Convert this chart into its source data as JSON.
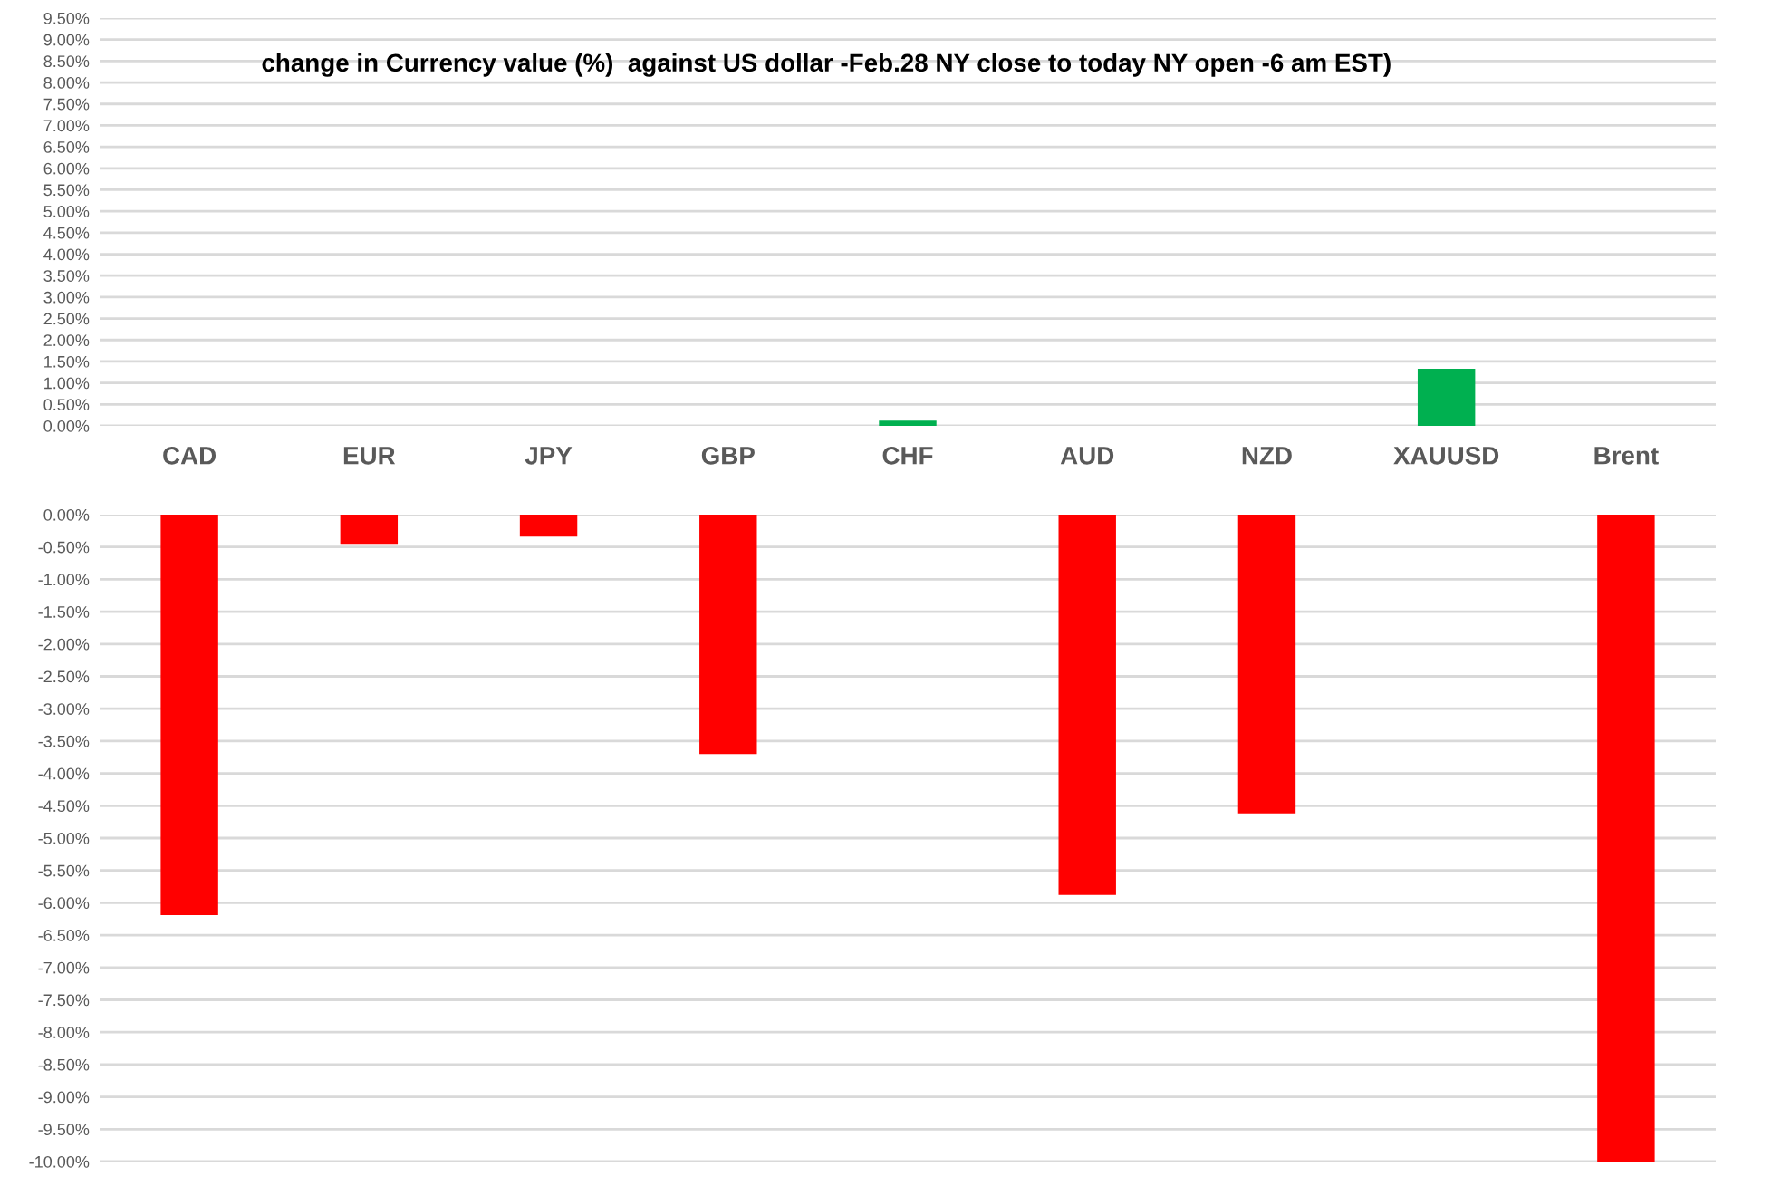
{
  "chart_data": [
    {
      "type": "bar",
      "title": "change in Currency value (%)  against US dollar -Feb.28 NY close to today NY open -6 am EST)",
      "categories": [
        "CAD",
        "EUR",
        "JPY",
        "GBP",
        "CHF",
        "AUD",
        "NZD",
        "XAUUSD",
        "Brent"
      ],
      "series": [
        {
          "color": "#00b050",
          "values": [
            null,
            null,
            null,
            null,
            0.12,
            null,
            null,
            1.33,
            null
          ]
        }
      ],
      "ylim": [
        0,
        9.5
      ],
      "yticks": [
        {
          "value": 0,
          "label": "0.00%"
        },
        {
          "value": 0.5,
          "label": "0.50%"
        },
        {
          "value": 1,
          "label": "1.00%"
        },
        {
          "value": 1.5,
          "label": "1.50%"
        },
        {
          "value": 2,
          "label": "2.00%"
        },
        {
          "value": 2.5,
          "label": "2.50%"
        },
        {
          "value": 3,
          "label": "3.00%"
        },
        {
          "value": 3.5,
          "label": "3.50%"
        },
        {
          "value": 4,
          "label": "4.00%"
        },
        {
          "value": 4.5,
          "label": "4.50%"
        },
        {
          "value": 5,
          "label": "5.00%"
        },
        {
          "value": 5.5,
          "label": "5.50%"
        },
        {
          "value": 6,
          "label": "6.00%"
        },
        {
          "value": 6.5,
          "label": "6.50%"
        },
        {
          "value": 7,
          "label": "7.00%"
        },
        {
          "value": 7.5,
          "label": "7.50%"
        },
        {
          "value": 8,
          "label": "8.00%"
        },
        {
          "value": 8.5,
          "label": "8.50%"
        },
        {
          "value": 9,
          "label": "9.00%"
        },
        {
          "value": 9.5,
          "label": "9.50%"
        }
      ],
      "grid": "y"
    },
    {
      "type": "bar",
      "categories": [
        null,
        null,
        null,
        null,
        null,
        null,
        null,
        null,
        null
      ],
      "series": [
        {
          "color": "#ff0000",
          "values": [
            -6.19,
            -0.45,
            -0.34,
            -3.7,
            null,
            -5.88,
            -4.62,
            null,
            -10.0
          ]
        }
      ],
      "ylim": [
        -10,
        0
      ],
      "yticks": [
        {
          "value": 0,
          "label": "0.00%"
        },
        {
          "value": -0.5,
          "label": "-0.50%"
        },
        {
          "value": -1,
          "label": "-1.00%"
        },
        {
          "value": -1.5,
          "label": "-1.50%"
        },
        {
          "value": -2,
          "label": "-2.00%"
        },
        {
          "value": -2.5,
          "label": "-2.50%"
        },
        {
          "value": -3,
          "label": "-3.00%"
        },
        {
          "value": -3.5,
          "label": "-3.50%"
        },
        {
          "value": -4,
          "label": "-4.00%"
        },
        {
          "value": -4.5,
          "label": "-4.50%"
        },
        {
          "value": -5,
          "label": "-5.00%"
        },
        {
          "value": -5.5,
          "label": "-5.50%"
        },
        {
          "value": -6,
          "label": "-6.00%"
        },
        {
          "value": -6.5,
          "label": "-6.50%"
        },
        {
          "value": -7,
          "label": "-7.00%"
        },
        {
          "value": -7.5,
          "label": "-7.50%"
        },
        {
          "value": -8,
          "label": "-8.00%"
        },
        {
          "value": -8.5,
          "label": "-8.50%"
        },
        {
          "value": -9,
          "label": "-9.00%"
        },
        {
          "value": -9.5,
          "label": "-9.50%"
        },
        {
          "value": -10,
          "label": "-10.00%"
        }
      ],
      "grid": "y",
      "tick_labels": "y"
    }
  ]
}
